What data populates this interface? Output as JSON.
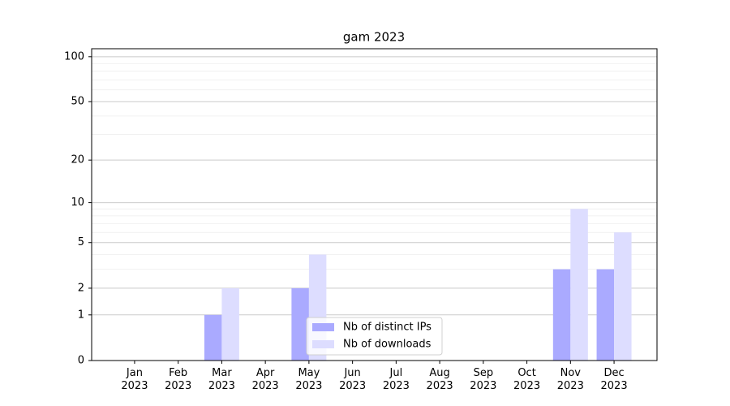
{
  "chart_data": {
    "type": "bar",
    "title": "gam 2023",
    "categories": [
      "Jan\n2023",
      "Feb\n2023",
      "Mar\n2023",
      "Apr\n2023",
      "May\n2023",
      "Jun\n2023",
      "Jul\n2023",
      "Aug\n2023",
      "Sep\n2023",
      "Oct\n2023",
      "Nov\n2023",
      "Dec\n2023"
    ],
    "series": [
      {
        "name": "Nb of distinct IPs",
        "color": "#aaaaff",
        "values": [
          0,
          0,
          1,
          0,
          2,
          0,
          0,
          0,
          0,
          0,
          3,
          3
        ]
      },
      {
        "name": "Nb of downloads",
        "color": "#ddddff",
        "values": [
          0,
          0,
          2,
          0,
          4,
          0,
          0,
          0,
          0,
          0,
          9,
          6
        ]
      }
    ],
    "yscale": "log1p",
    "ylim": [
      0,
      113
    ],
    "yticks": [
      0,
      1,
      2,
      5,
      10,
      20,
      50,
      100
    ],
    "yminor": [
      2,
      3,
      4,
      5,
      6,
      7,
      8,
      9,
      20,
      30,
      40,
      50,
      60,
      70,
      80,
      90,
      100
    ],
    "grid": true,
    "legend": "lower center"
  }
}
